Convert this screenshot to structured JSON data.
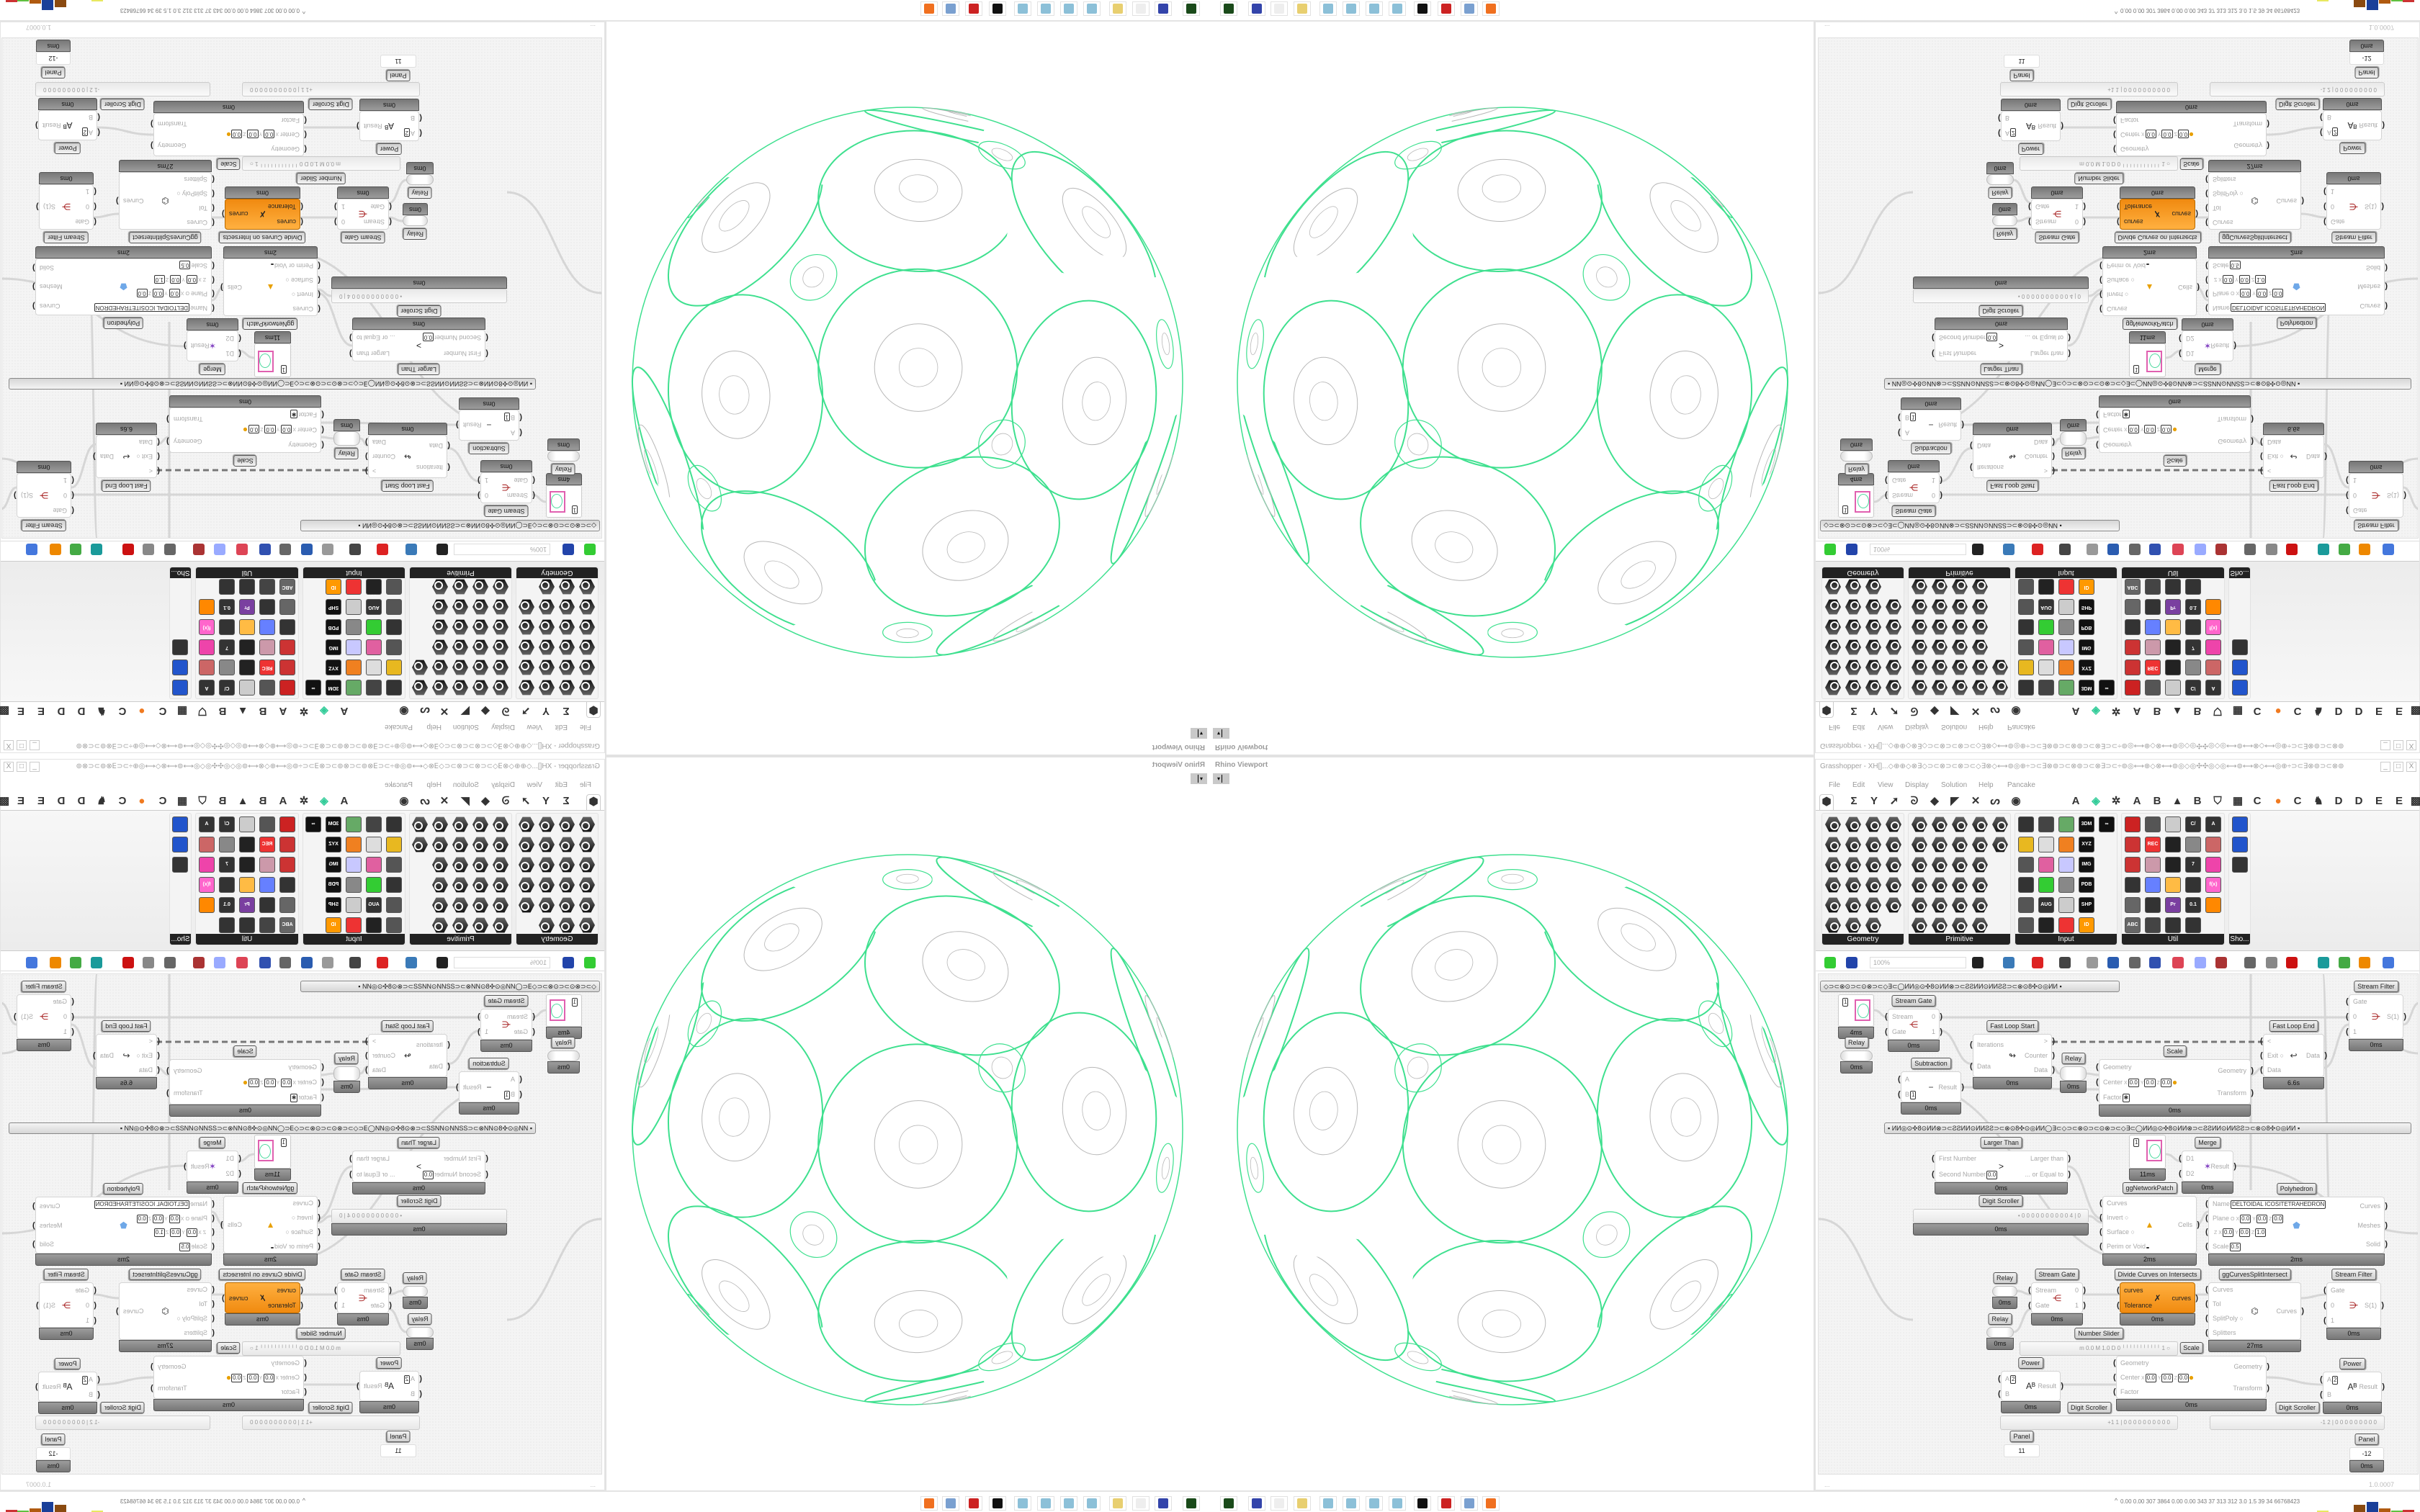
{
  "viewport": {
    "title": "Rhino Viewport",
    "dropdown": "▾"
  },
  "window": {
    "title": "Grasshopper - XH[]...◇⊕⊕◇⊗∃◇⊃⊂⊗⊃⊂⊗⊃⊂◇∃⊗◇⟷⊚◎⊕÷⊃⊂∃⊗⊚⊃⊂⊗⊚⊃⊂⊗∃⊃⊂÷⊚◎⟷⊕◇⊗⟷⊚◎◇◎✣✣◎◇◎⟷⊚⟷⊗◇⟷◎⊕÷⊃⊂∃⊗⊚⊃⊂⊗⊚",
    "minimize": "_",
    "maximize": "□",
    "close": "X"
  },
  "menu": [
    "File",
    "Edit",
    "View",
    "Display",
    "Solution",
    "Help",
    "Pancake"
  ],
  "ribbon": {
    "tabs": [
      {
        "icon": "params-hexagon-icon",
        "glyph": "⬢"
      },
      {
        "icon": "maths-sigma-icon",
        "glyph": "Σ"
      },
      {
        "icon": "sets-icon",
        "glyph": "Y"
      },
      {
        "icon": "vector-icon",
        "glyph": "➚"
      },
      {
        "icon": "curve-icon",
        "glyph": "ᘐ"
      },
      {
        "icon": "surface-icon",
        "glyph": "◆"
      },
      {
        "icon": "mesh-icon",
        "glyph": "◤"
      },
      {
        "icon": "intersect-icon",
        "glyph": "✕"
      },
      {
        "icon": "transform-icon",
        "glyph": "ᔕ"
      },
      {
        "icon": "display-eye-icon",
        "glyph": "◉"
      },
      {
        "icon": "plugin-a-icon",
        "text": "A"
      },
      {
        "icon": "leaf-icon",
        "glyph": "◈"
      },
      {
        "icon": "plugin-paw-icon",
        "glyph": "✲"
      },
      {
        "icon": "plugin-a2-icon",
        "text": "A"
      },
      {
        "icon": "plugin-b-icon",
        "text": "B"
      },
      {
        "icon": "terrain-icon",
        "glyph": "▲"
      },
      {
        "icon": "plugin-b2-icon",
        "text": "B"
      },
      {
        "icon": "shield-icon",
        "glyph": "⛉"
      },
      {
        "icon": "grid-icon",
        "glyph": "▦"
      },
      {
        "icon": "plugin-c-icon",
        "text": "C"
      },
      {
        "icon": "orange-dot-icon",
        "glyph": "●"
      },
      {
        "icon": "plugin-c2-icon",
        "text": "C"
      },
      {
        "icon": "rooster-icon",
        "glyph": "♞"
      },
      {
        "icon": "plugin-d-icon",
        "text": "D"
      },
      {
        "icon": "plugin-d2-icon",
        "text": "D"
      },
      {
        "icon": "plugin-e-icon",
        "text": "E"
      },
      {
        "icon": "plugin-e2-icon",
        "text": "E"
      },
      {
        "icon": "more-tabs-icon",
        "glyph": "▩"
      }
    ],
    "panels": [
      {
        "label": "Geometry",
        "rows": [
          4,
          4,
          4,
          4,
          4,
          3
        ],
        "style": "hex"
      },
      {
        "label": "Primitive",
        "rows": [
          5,
          5,
          4,
          4,
          4,
          4
        ],
        "style": "hex"
      },
      {
        "label": "Input",
        "rows": [
          5,
          4,
          4,
          4,
          4,
          4
        ],
        "style": "sq",
        "texts": [
          "",
          "",
          "",
          "3DM",
          "∞",
          "",
          "",
          "",
          "XYZ",
          "",
          "",
          "",
          "IMG",
          "",
          "",
          "",
          "PDB",
          "",
          "AUG 20",
          "",
          "SHP",
          "",
          "",
          "",
          "ID"
        ]
      },
      {
        "label": "Util",
        "rows": [
          5,
          5,
          5,
          5,
          5,
          4
        ],
        "style": "sq",
        "texts": [
          "",
          "",
          "",
          "C/",
          "A",
          "",
          "REC",
          "",
          "",
          "",
          "",
          "",
          "",
          "7",
          "",
          "",
          "",
          "",
          "",
          "f(x)",
          "",
          "",
          "Pr",
          "0.1",
          "",
          "ABC",
          "",
          "",
          ""
        ]
      },
      {
        "label": "Sho...",
        "rows": [
          1,
          1,
          1
        ],
        "style": "sq",
        "texts": [
          "",
          "",
          ""
        ]
      }
    ],
    "input_colors": [
      "#333",
      "#444",
      "#6a6",
      "#111",
      "#111",
      "#e8b820",
      "#ddd",
      "#f08020",
      "#111",
      "#555",
      "#e060a0",
      "#c8c8ff",
      "#111",
      "#333",
      "#3c3",
      "#888",
      "#111",
      "#555",
      "#333",
      "#ccc",
      "#111",
      "#555",
      "#222",
      "#e33",
      "#f90"
    ],
    "util_colors": [
      "#c22",
      "#555",
      "#ccc",
      "#333",
      "#333",
      "#c33",
      "#e33",
      "#222",
      "#888",
      "#c66",
      "#c33",
      "#c9a",
      "#222",
      "#333",
      "#e4a",
      "#333",
      "#6680ff",
      "#fb4",
      "#333",
      "#f6c",
      "#666",
      "#333",
      "#7a3fa0",
      "#333",
      "#f80",
      "#666",
      "#444",
      "#333",
      "#333"
    ],
    "shortcut_colors": [
      "#2255cc",
      "#2255cc",
      "#333"
    ]
  },
  "toolbar": {
    "zoom": "100%",
    "icons": [
      "open-file-icon",
      "save-file-icon",
      "zoom-extents-icon",
      "preview-eye-icon",
      "sketch-pen-icon",
      "bake-icon",
      "cluster-icon",
      "cha-icon",
      "document-icon",
      "s-badge-icon",
      "gift-icon",
      "bubble-icon",
      "wire-display-icon",
      "preview-shaded-icon",
      "preview-wire-icon",
      "preview-selected-icon",
      "render-teal-icon",
      "render-green-icon",
      "render-orange-icon",
      "render-blue-icon"
    ],
    "icon_colors": [
      "#3c3",
      "#2244aa",
      "#222",
      "#3a7ab8",
      "#d22",
      "#444",
      "#999",
      "#2a5cb0",
      "#666",
      "#3050b0",
      "#d45",
      "#99aaff",
      "#a33",
      "#666",
      "#888",
      "#c11",
      "#1a9a9a",
      "#4a4",
      "#e80",
      "#4477dd"
    ]
  },
  "canvas": {
    "groups": [
      "◇⊃⊂⊗⊙⊃⊂⊙⊗⊃⊂◇∃⊂◯ИИ◎⊙✣8⊙ИИ⊗⊃⊂ƧƧИИ⊙ИИƧƧ⊃⊂⊗⊙8✣⊙◎ИИ          ▪",
      "▪          ИИ◎⊙✣8⊙ИИ⊗⊃⊂ƧƧИИ⊙ИИƧƧ⊃⊂⊗⊙8✣⊙◎ИИ◯∃⊂◇⊃⊂⊗⊙⊃⊂⊙⊗⊃⊂◇∃⊂◯ИИ◎⊙✣8⊙ИИ⊗⊃⊂ƧƧИИ⊙ИИƧƧ⊃⊂⊗⊙8✣⊙◎ИИ          ▪"
    ],
    "components": [
      {
        "type": "swatch",
        "input_value": "1",
        "timing": "4ms"
      },
      {
        "type": "relay",
        "label": "Relay",
        "timing": "0ms"
      },
      {
        "type": "std",
        "label": "Stream Gate",
        "inputs": [
          {
            "t": "Stream"
          },
          {
            "t": "Gate"
          }
        ],
        "outputs": [
          "0",
          "1"
        ],
        "icon": "stream-gate-icon",
        "glyph": "⋲",
        "color": "#a01010",
        "timing": "0ms"
      },
      {
        "type": "std",
        "label": "Fast Loop Start",
        "inputs": [
          {
            "t": "Iterations"
          },
          {
            "t": "Data"
          }
        ],
        "outputs": [
          ">",
          "Counter",
          "Data"
        ],
        "icon": "loop-start-icon",
        "glyph": "↬",
        "color": "#333",
        "timing": "0ms"
      },
      {
        "type": "relay",
        "label": "Relay",
        "timing": "0ms"
      },
      {
        "type": "std",
        "label": "Subtraction",
        "inputs": [
          {
            "t": "A"
          },
          {
            "t": "B",
            "v": [
              "1"
            ]
          }
        ],
        "outputs": [
          "Result"
        ],
        "icon": "minus-icon",
        "glyph": "−",
        "color": "#333",
        "timing": "0ms"
      },
      {
        "type": "std",
        "label": "Scale",
        "inputs": [
          {
            "t": "Geometry"
          },
          {
            "t": "Center",
            "v": [
              "X",
              "0.0",
              "Y",
              "0.0",
              "Z",
              "0.0"
            ]
          },
          {
            "t": "Factor",
            "v": [
              "✱"
            ]
          }
        ],
        "outputs": [
          "Geometry",
          "Transform"
        ],
        "icon": "scale-icon",
        "glyph": "●",
        "color": "#e8a000",
        "timing": "0ms"
      },
      {
        "type": "std",
        "label": "Fast Loop End",
        "inputs": [
          {
            "t": "<"
          },
          {
            "t": "Exit ○"
          },
          {
            "t": "Data"
          }
        ],
        "outputs": [
          "Data"
        ],
        "icon": "loop-end-icon",
        "glyph": "↩",
        "color": "#333",
        "timing": "6.6s"
      },
      {
        "type": "std",
        "label": "Stream Filter",
        "inputs": [
          {
            "t": "Gate"
          },
          {
            "t": "0"
          },
          {
            "t": "1"
          }
        ],
        "outputs": [
          "S(1)"
        ],
        "icon": "stream-filter-icon",
        "glyph": "⋺",
        "color": "#a01010",
        "timing": "0ms"
      },
      {
        "type": "std",
        "label": "Larger Than",
        "inputs": [
          {
            "t": "First Number"
          },
          {
            "t": "Second Number",
            "v": [
              "0.0"
            ]
          }
        ],
        "outputs": [
          "Larger than",
          "... or Equal to"
        ],
        "icon": "larger-than-icon",
        "glyph": ">",
        "color": "#222",
        "timing": "0ms"
      },
      {
        "type": "swatch",
        "input_value": "1",
        "timing": "11ms"
      },
      {
        "type": "std",
        "label": "Merge",
        "inputs": [
          {
            "t": "D1"
          },
          {
            "t": "D2"
          }
        ],
        "outputs": [
          "Result"
        ],
        "icon": "merge-icon",
        "glyph": "✶",
        "color": "#8040c0",
        "timing": "0ms"
      },
      {
        "type": "std",
        "label": "Polyhedron",
        "inputs": [
          {
            "t": "Name",
            "v": [
              "DELTOIDAL ICOSITETRAHEDRON"
            ]
          },
          {
            "t": "Plane",
            "v": [
              "O",
              "X",
              "0.0",
              "Y",
              "0.0",
              "Z",
              "0.0"
            ]
          },
          {
            "t": "",
            "v": [
              "Z",
              "X",
              "0.0",
              "Y",
              "0.0",
              "Z",
              "1.0"
            ]
          },
          {
            "t": "Scale",
            "v": [
              "0.5"
            ]
          }
        ],
        "outputs": [
          "Curves",
          "Meshes",
          "Solid"
        ],
        "icon": "polyhedron-icon",
        "glyph": "⬟",
        "color": "#6fa8e8",
        "timing": "2ms"
      },
      {
        "type": "slider",
        "label": "Digit Scroller",
        "text": "• 0 0 0 0 0 0 0 0 0 0 4 | 0",
        "timing": "0ms"
      },
      {
        "type": "std",
        "label": "ggNetworkPatch",
        "inputs": [
          {
            "t": "Curves"
          },
          {
            "t": "Invert ○"
          },
          {
            "t": "Surface ○"
          },
          {
            "t": "Perim or Void",
            "v": [
              "  "
            ]
          }
        ],
        "outputs": [
          "Cells"
        ],
        "icon": "network-patch-icon",
        "glyph": "▲",
        "color": "#e8a000",
        "timing": "2ms"
      },
      {
        "type": "relay",
        "label": "Relay",
        "timing": "0ms"
      },
      {
        "type": "std",
        "label": "Stream Gate",
        "inputs": [
          {
            "t": "Stream"
          },
          {
            "t": "Gate"
          }
        ],
        "outputs": [
          "0",
          "1"
        ],
        "icon": "stream-gate-icon",
        "glyph": "⋲",
        "color": "#a01010",
        "timing": "0ms"
      },
      {
        "type": "std",
        "label": "Divide Curves on Intersects",
        "orange": true,
        "inputs": [
          {
            "t": "curves"
          },
          {
            "t": "Tolerance"
          }
        ],
        "outputs": [
          "curves"
        ],
        "icon": "divide-curves-icon",
        "glyph": "✗",
        "color": "#222",
        "timing": "0ms"
      },
      {
        "type": "std",
        "label": "ggCurvesSplitIntersect",
        "inputs": [
          {
            "t": "Curves"
          },
          {
            "t": "Tol"
          },
          {
            "t": "SplitPoly ○"
          },
          {
            "t": "Splitters"
          }
        ],
        "outputs": [
          "Curves"
        ],
        "icon": "split-intersect-icon",
        "glyph": "⌬",
        "color": "#444",
        "timing": "27ms"
      },
      {
        "type": "std",
        "label": "Stream Filter",
        "inputs": [
          {
            "t": "Gate"
          },
          {
            "t": "0"
          },
          {
            "t": "1"
          }
        ],
        "outputs": [
          "S(1)"
        ],
        "icon": "stream-filter-icon",
        "glyph": "⋺",
        "color": "#a01010",
        "timing": "0ms"
      },
      {
        "type": "relay",
        "label": "Relay",
        "timing": "0ms"
      },
      {
        "type": "slider",
        "label": "Number Slider",
        "text": "m 0.0  M 1.0  D 0   ╵╵╵╵╵╵╵╵╵╵╵ 1 ○"
      },
      {
        "type": "std",
        "label": "Scale",
        "inputs": [
          {
            "t": "Geometry"
          },
          {
            "t": "Center",
            "v": [
              "X",
              "0.0",
              "Y",
              "0.0",
              "Z",
              "0.0"
            ]
          },
          {
            "t": "Factor"
          }
        ],
        "outputs": [
          "Geometry",
          "Transform"
        ],
        "icon": "scale-icon",
        "glyph": "●",
        "color": "#e8a000",
        "timing": "0ms"
      },
      {
        "type": "std",
        "label": "Power",
        "inputs": [
          {
            "t": "A",
            "v": [
              "2"
            ]
          },
          {
            "t": "B"
          }
        ],
        "outputs": [
          "Result"
        ],
        "icon": "power-icon",
        "glyph": "Aᴮ",
        "color": "#222",
        "timing": "0ms"
      },
      {
        "type": "slider",
        "label": "Digit Scroller",
        "text": "+1 1 | 0 0 0 0 0 0 0 0 0 0"
      },
      {
        "type": "panel",
        "label": "Panel",
        "text": "11"
      },
      {
        "type": "std",
        "label": "Power",
        "inputs": [
          {
            "t": "A",
            "v": [
              "2"
            ]
          },
          {
            "t": "B"
          }
        ],
        "outputs": [
          "Result"
        ],
        "icon": "power-icon",
        "glyph": "Aᴮ",
        "color": "#222",
        "timing": "0ms"
      },
      {
        "type": "slider",
        "label": "Digit Scroller",
        "text": "-1 2 | 0 0 0 0 0 0 0 0 0"
      },
      {
        "type": "panel",
        "label": "Panel",
        "text": "-12",
        "timing": "0ms"
      }
    ]
  },
  "status": {
    "left": "...",
    "version": "1.0.0007"
  },
  "taskbar": {
    "icons": [
      "rhino-64-icon",
      "floppy-64-icon",
      "blank-app-icon",
      "folder-icon",
      "notepad-icon",
      "notepad-icon",
      "notepad-icon",
      "notepad-icon",
      "rhino-app-icon",
      "red-app-icon",
      "calculator-icon",
      "firefox-icon"
    ],
    "icon_colors": [
      "#1a4a1a",
      "#3344aa",
      "#eee",
      "#e8cf70",
      "#8cc0d8",
      "#8cc0d8",
      "#8cc0d8",
      "#8cc0d8",
      "#111",
      "#cc2222",
      "#7aa0d0",
      "#f07020"
    ],
    "tray_chevron": "^",
    "system_stats": "0.00 0.00 307 3864 0.00 0.00 343  37  313  312  3.0  1.5  39  34  66768423",
    "meter_colors": [
      "#e8e860",
      "#8a4a10",
      "#1a3f99",
      "#b05a10",
      "#60c040",
      "#cc3333"
    ],
    "meter_levels": [
      0.1,
      0.7,
      1.0,
      0.35,
      0.1,
      0.2
    ]
  },
  "colors": {
    "wire": "#d6d6d6",
    "sphere_network": "#3fe08f",
    "sphere_detail": "#b8b8b8"
  }
}
